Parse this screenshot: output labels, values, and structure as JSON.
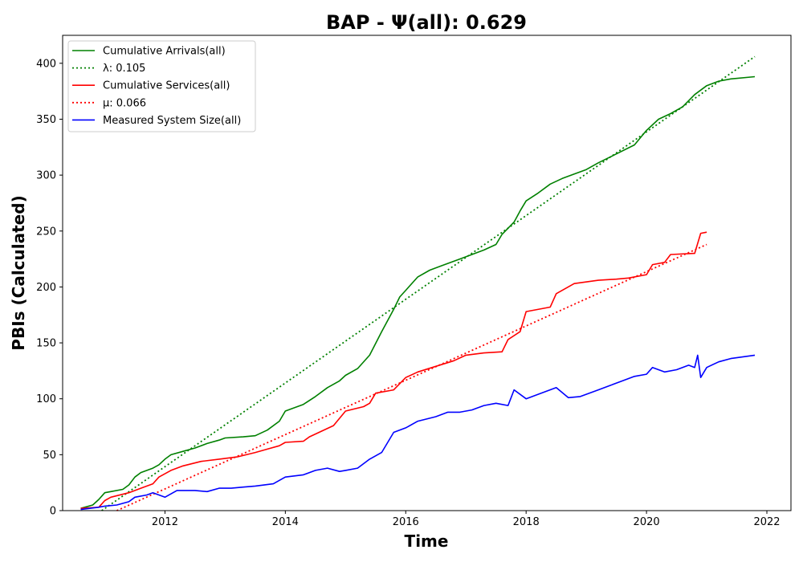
{
  "chart_data": {
    "type": "line",
    "title": "BAP -  Ψ(all): 0.629",
    "xlabel": "Time",
    "ylabel": "PBIs (Calculated)",
    "xlim": [
      2010.3,
      2022.4
    ],
    "ylim": [
      0,
      425
    ],
    "x_ticks": [
      2012,
      2014,
      2016,
      2018,
      2020,
      2022
    ],
    "x_tick_labels": [
      "2012",
      "2014",
      "2016",
      "2018",
      "2020",
      "2022"
    ],
    "y_ticks": [
      0,
      50,
      100,
      150,
      200,
      250,
      300,
      350,
      400
    ],
    "y_tick_labels": [
      "0",
      "50",
      "100",
      "150",
      "200",
      "250",
      "300",
      "350",
      "400"
    ],
    "grid": false,
    "legend_position": "top-left",
    "series": [
      {
        "name": "Cumulative Arrivals(all)",
        "color": "#008000",
        "style": "solid",
        "x": [
          2010.6,
          2010.8,
          2010.9,
          2011.0,
          2011.1,
          2011.3,
          2011.4,
          2011.5,
          2011.6,
          2011.8,
          2011.9,
          2012.0,
          2012.1,
          2012.3,
          2012.5,
          2012.7,
          2012.9,
          2013.0,
          2013.3,
          2013.5,
          2013.7,
          2013.9,
          2014.0,
          2014.3,
          2014.5,
          2014.7,
          2014.9,
          2015.0,
          2015.2,
          2015.4,
          2015.6,
          2015.8,
          2015.9,
          2016.0,
          2016.2,
          2016.4,
          2016.6,
          2016.9,
          2017.1,
          2017.3,
          2017.5,
          2017.6,
          2017.8,
          2017.9,
          2018.0,
          2018.2,
          2018.4,
          2018.6,
          2018.8,
          2019.0,
          2019.2,
          2019.5,
          2019.8,
          2020.0,
          2020.2,
          2020.4,
          2020.6,
          2020.8,
          2021.0,
          2021.2,
          2021.4,
          2021.8
        ],
        "y": [
          2,
          5,
          10,
          16,
          17,
          19,
          23,
          30,
          34,
          38,
          41,
          46,
          50,
          53,
          56,
          60,
          63,
          65,
          66,
          67,
          72,
          80,
          89,
          95,
          102,
          110,
          116,
          121,
          127,
          139,
          160,
          180,
          191,
          197,
          209,
          215,
          219,
          225,
          229,
          233,
          238,
          247,
          258,
          268,
          277,
          284,
          292,
          297,
          301,
          305,
          311,
          319,
          327,
          340,
          350,
          355,
          361,
          372,
          380,
          384,
          386,
          388
        ]
      },
      {
        "name": "λ: 0.105",
        "color": "#008000",
        "style": "dotted",
        "x": [
          2010.95,
          2021.8
        ],
        "y": [
          0,
          406
        ]
      },
      {
        "name": "Cumulative Services(all)",
        "color": "#ff0000",
        "style": "solid",
        "x": [
          2010.6,
          2010.9,
          2011.0,
          2011.1,
          2011.4,
          2011.6,
          2011.8,
          2011.9,
          2012.1,
          2012.3,
          2012.6,
          2012.9,
          2013.2,
          2013.5,
          2013.7,
          2013.9,
          2014.0,
          2014.3,
          2014.4,
          2014.6,
          2014.8,
          2015.0,
          2015.3,
          2015.4,
          2015.5,
          2015.8,
          2016.0,
          2016.2,
          2016.5,
          2016.8,
          2017.0,
          2017.3,
          2017.6,
          2017.7,
          2017.9,
          2018.0,
          2018.4,
          2018.5,
          2018.8,
          2019.2,
          2019.5,
          2019.7,
          2020.0,
          2020.1,
          2020.3,
          2020.4,
          2020.8,
          2020.9,
          2021.0
        ],
        "y": [
          2,
          3,
          9,
          12,
          16,
          20,
          24,
          30,
          36,
          40,
          44,
          46,
          48,
          52,
          55,
          58,
          61,
          62,
          66,
          71,
          76,
          89,
          93,
          96,
          105,
          108,
          119,
          124,
          129,
          134,
          139,
          141,
          142,
          153,
          160,
          178,
          182,
          194,
          203,
          206,
          207,
          208,
          211,
          220,
          222,
          229,
          230,
          248,
          249
        ]
      },
      {
        "name": "μ: 0.066",
        "color": "#ff0000",
        "style": "dotted",
        "x": [
          2011.2,
          2021.0
        ],
        "y": [
          0,
          238
        ]
      },
      {
        "name": "Measured System Size(all)",
        "color": "#0000ff",
        "style": "solid",
        "x": [
          2010.6,
          2010.9,
          2011.0,
          2011.2,
          2011.4,
          2011.5,
          2011.7,
          2011.8,
          2012.0,
          2012.2,
          2012.5,
          2012.7,
          2012.9,
          2013.1,
          2013.3,
          2013.5,
          2013.8,
          2014.0,
          2014.3,
          2014.5,
          2014.7,
          2014.9,
          2015.0,
          2015.2,
          2015.4,
          2015.6,
          2015.8,
          2016.0,
          2016.2,
          2016.5,
          2016.7,
          2016.9,
          2017.1,
          2017.3,
          2017.5,
          2017.7,
          2017.8,
          2018.0,
          2018.2,
          2018.5,
          2018.7,
          2018.9,
          2019.2,
          2019.4,
          2019.6,
          2019.8,
          2020.0,
          2020.1,
          2020.3,
          2020.5,
          2020.7,
          2020.8,
          2020.85,
          2020.9,
          2021.0,
          2021.2,
          2021.4,
          2021.8
        ],
        "y": [
          1,
          3,
          4,
          5,
          8,
          12,
          14,
          16,
          12,
          18,
          18,
          17,
          20,
          20,
          21,
          22,
          24,
          30,
          32,
          36,
          38,
          35,
          36,
          38,
          46,
          52,
          70,
          74,
          80,
          84,
          88,
          88,
          90,
          94,
          96,
          94,
          108,
          100,
          104,
          110,
          101,
          102,
          108,
          112,
          116,
          120,
          122,
          128,
          124,
          126,
          130,
          128,
          139,
          119,
          128,
          133,
          136,
          139
        ]
      }
    ]
  }
}
